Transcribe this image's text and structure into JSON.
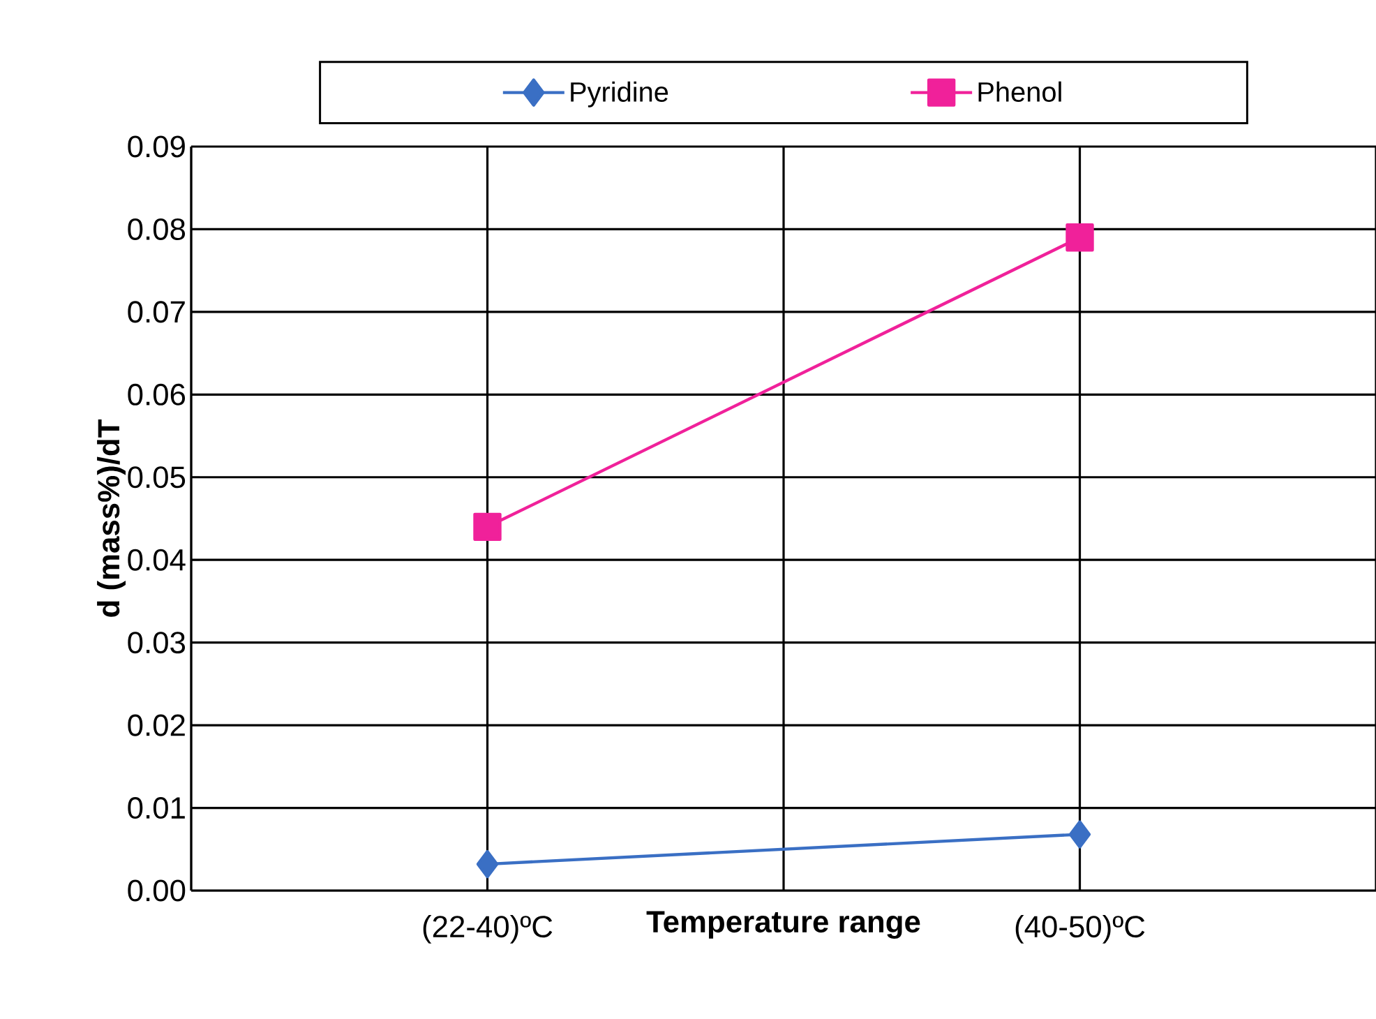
{
  "chart_data": {
    "type": "line",
    "xlabel": "Temperature range",
    "ylabel": "d (mass%)/dT",
    "categories": [
      "(22-40)ºC",
      "(40-50)ºC"
    ],
    "series": [
      {
        "name": "Pyridine",
        "color": "#3a6fc4",
        "values": [
          0.0032,
          0.0068
        ],
        "marker": "diamond"
      },
      {
        "name": "Phenol",
        "color": "#f0219a",
        "values": [
          0.044,
          0.079
        ],
        "marker": "square"
      }
    ],
    "ylim": [
      0,
      0.09
    ],
    "yticks": [
      {
        "value": 0,
        "label": "0.00"
      },
      {
        "value": 0.01,
        "label": "0.01"
      },
      {
        "value": 0.02,
        "label": "0.02"
      },
      {
        "value": 0.03,
        "label": "0.03"
      },
      {
        "value": 0.04,
        "label": "0.04"
      },
      {
        "value": 0.05,
        "label": "0.05"
      },
      {
        "value": 0.06,
        "label": "0.06"
      },
      {
        "value": 0.07,
        "label": "0.07"
      },
      {
        "value": 0.08,
        "label": "0.08"
      },
      {
        "value": 0.09,
        "label": "0.09"
      }
    ],
    "grid": true,
    "legend": "top",
    "line_style": "solid"
  }
}
